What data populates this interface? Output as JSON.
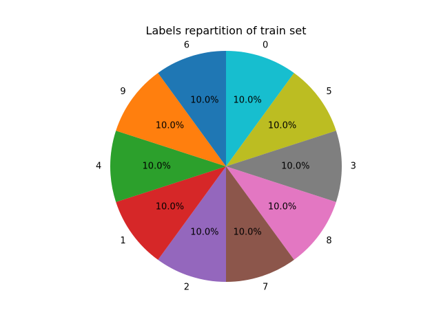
{
  "chart_data": {
    "type": "pie",
    "title": "Labels repartition of train set",
    "start_angle_deg": 90,
    "direction": "clockwise",
    "slices": [
      {
        "label": "0",
        "value": 10.0,
        "pct_label": "10.0%",
        "color": "#17becf"
      },
      {
        "label": "5",
        "value": 10.0,
        "pct_label": "10.0%",
        "color": "#bcbd22"
      },
      {
        "label": "3",
        "value": 10.0,
        "pct_label": "10.0%",
        "color": "#7f7f7f"
      },
      {
        "label": "8",
        "value": 10.0,
        "pct_label": "10.0%",
        "color": "#e377c2"
      },
      {
        "label": "7",
        "value": 10.0,
        "pct_label": "10.0%",
        "color": "#8c564b"
      },
      {
        "label": "2",
        "value": 10.0,
        "pct_label": "10.0%",
        "color": "#9467bd"
      },
      {
        "label": "1",
        "value": 10.0,
        "pct_label": "10.0%",
        "color": "#d62728"
      },
      {
        "label": "4",
        "value": 10.0,
        "pct_label": "10.0%",
        "color": "#2ca02c"
      },
      {
        "label": "9",
        "value": 10.0,
        "pct_label": "10.0%",
        "color": "#ff7f0e"
      },
      {
        "label": "6",
        "value": 10.0,
        "pct_label": "10.0%",
        "color": "#1f77b4"
      }
    ]
  }
}
